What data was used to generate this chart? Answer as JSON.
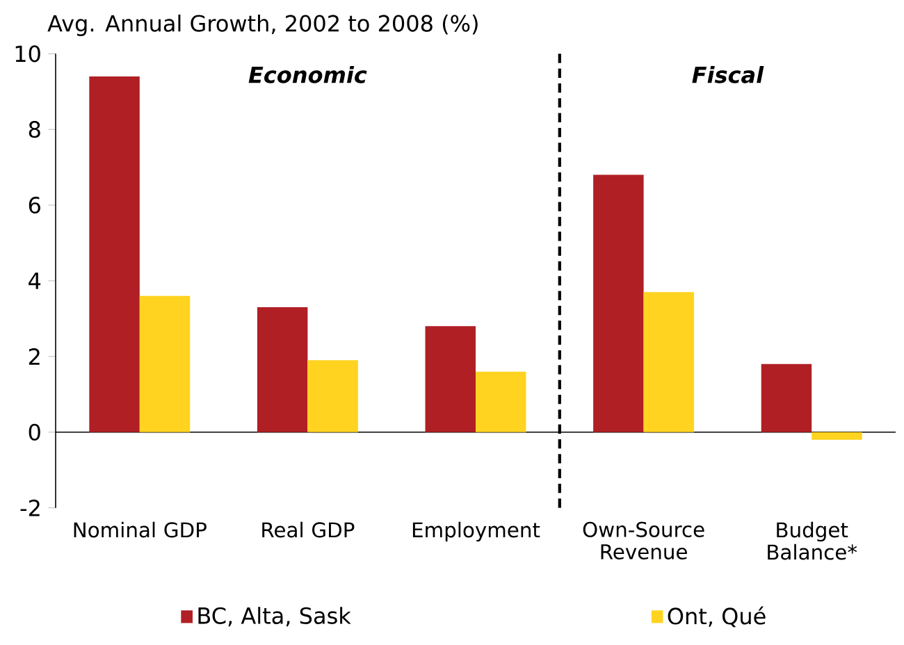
{
  "chart_data": {
    "type": "bar",
    "title": "Avg. Annual Growth, 2002 to 2008 (%)",
    "categories": [
      "Nominal GDP",
      "Real GDP",
      "Employment",
      "Own-Source Revenue",
      "Budget Balance*"
    ],
    "series": [
      {
        "name": "BC, Alta, Sask",
        "color": "#b01f24",
        "values": [
          9.4,
          3.3,
          2.8,
          6.8,
          1.8
        ]
      },
      {
        "name": "Ont, Qué",
        "color": "#ffd320",
        "values": [
          3.6,
          1.9,
          1.6,
          3.7,
          -0.2
        ]
      }
    ],
    "ylim": [
      -2,
      10
    ],
    "yticks": [
      -2,
      0,
      2,
      4,
      6,
      8,
      10
    ],
    "annotations": [
      "Economic",
      "Fiscal"
    ],
    "legend": "bottom"
  }
}
